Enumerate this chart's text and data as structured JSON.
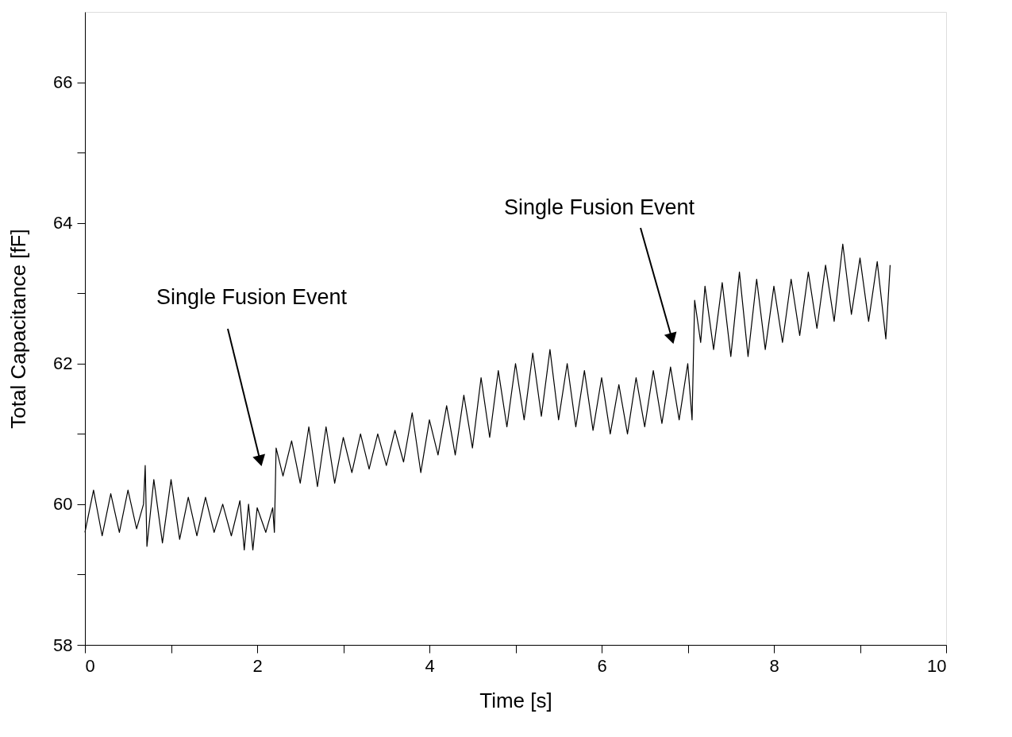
{
  "chart_data": {
    "type": "line",
    "xlabel": "Time [s]",
    "ylabel": "Total Capacitance [fF]",
    "xlim": [
      0,
      10
    ],
    "ylim": [
      58,
      67
    ],
    "xticks": [
      0,
      {
        "value": 1,
        "label": null
      },
      2,
      {
        "value": 3,
        "label": null
      },
      4,
      {
        "value": 5,
        "label": null
      },
      6,
      {
        "value": 7,
        "label": null
      },
      8,
      {
        "value": 9,
        "label": null
      },
      10
    ],
    "yticks": [
      58,
      {
        "value": 59,
        "label": null
      },
      60,
      {
        "value": 61,
        "label": null
      },
      62,
      {
        "value": 63,
        "label": null
      },
      64,
      {
        "value": 65,
        "label": null
      },
      66
    ],
    "grid": false,
    "marker": "none",
    "line_style": "solid",
    "annotations": [
      "Single Fusion Event",
      "Single Fusion Event"
    ],
    "series": [
      {
        "color": "#000000",
        "x": [
          0.0,
          0.1,
          0.2,
          0.3,
          0.4,
          0.5,
          0.6,
          0.68,
          0.7,
          0.72,
          0.8,
          0.9,
          1.0,
          1.1,
          1.2,
          1.3,
          1.4,
          1.5,
          1.6,
          1.7,
          1.8,
          1.85,
          1.9,
          1.95,
          2.0,
          2.1,
          2.18,
          2.2,
          2.22,
          2.3,
          2.4,
          2.5,
          2.6,
          2.7,
          2.8,
          2.9,
          3.0,
          3.1,
          3.2,
          3.3,
          3.4,
          3.5,
          3.6,
          3.7,
          3.8,
          3.9,
          4.0,
          4.1,
          4.2,
          4.3,
          4.4,
          4.5,
          4.6,
          4.7,
          4.8,
          4.9,
          5.0,
          5.1,
          5.2,
          5.3,
          5.4,
          5.5,
          5.6,
          5.7,
          5.8,
          5.9,
          6.0,
          6.1,
          6.2,
          6.3,
          6.4,
          6.5,
          6.6,
          6.7,
          6.8,
          6.9,
          7.0,
          7.05,
          7.08,
          7.15,
          7.2,
          7.3,
          7.4,
          7.5,
          7.6,
          7.7,
          7.8,
          7.9,
          8.0,
          8.1,
          8.2,
          8.3,
          8.4,
          8.5,
          8.6,
          8.7,
          8.8,
          8.9,
          9.0,
          9.1,
          9.2,
          9.3,
          9.35
        ],
        "values": [
          59.6,
          60.2,
          59.55,
          60.15,
          59.6,
          60.2,
          59.65,
          60.0,
          60.55,
          59.4,
          60.35,
          59.45,
          60.35,
          59.5,
          60.1,
          59.55,
          60.1,
          59.6,
          60.0,
          59.55,
          60.05,
          59.35,
          60.0,
          59.35,
          59.95,
          59.6,
          59.95,
          59.6,
          60.8,
          60.4,
          60.9,
          60.3,
          61.1,
          60.25,
          61.1,
          60.3,
          60.95,
          60.45,
          61.0,
          60.5,
          61.0,
          60.55,
          61.05,
          60.6,
          61.3,
          60.45,
          61.2,
          60.7,
          61.4,
          60.7,
          61.55,
          60.8,
          61.8,
          60.95,
          61.9,
          61.1,
          62.0,
          61.2,
          62.15,
          61.25,
          62.2,
          61.2,
          62.0,
          61.1,
          61.9,
          61.05,
          61.8,
          61.0,
          61.7,
          61.0,
          61.8,
          61.1,
          61.9,
          61.15,
          61.95,
          61.2,
          62.0,
          61.2,
          62.9,
          62.3,
          63.1,
          62.2,
          63.15,
          62.1,
          63.3,
          62.1,
          63.2,
          62.2,
          63.1,
          62.3,
          63.2,
          62.4,
          63.3,
          62.5,
          63.4,
          62.6,
          63.7,
          62.7,
          63.5,
          62.6,
          63.45,
          62.35,
          63.4
        ]
      }
    ]
  }
}
